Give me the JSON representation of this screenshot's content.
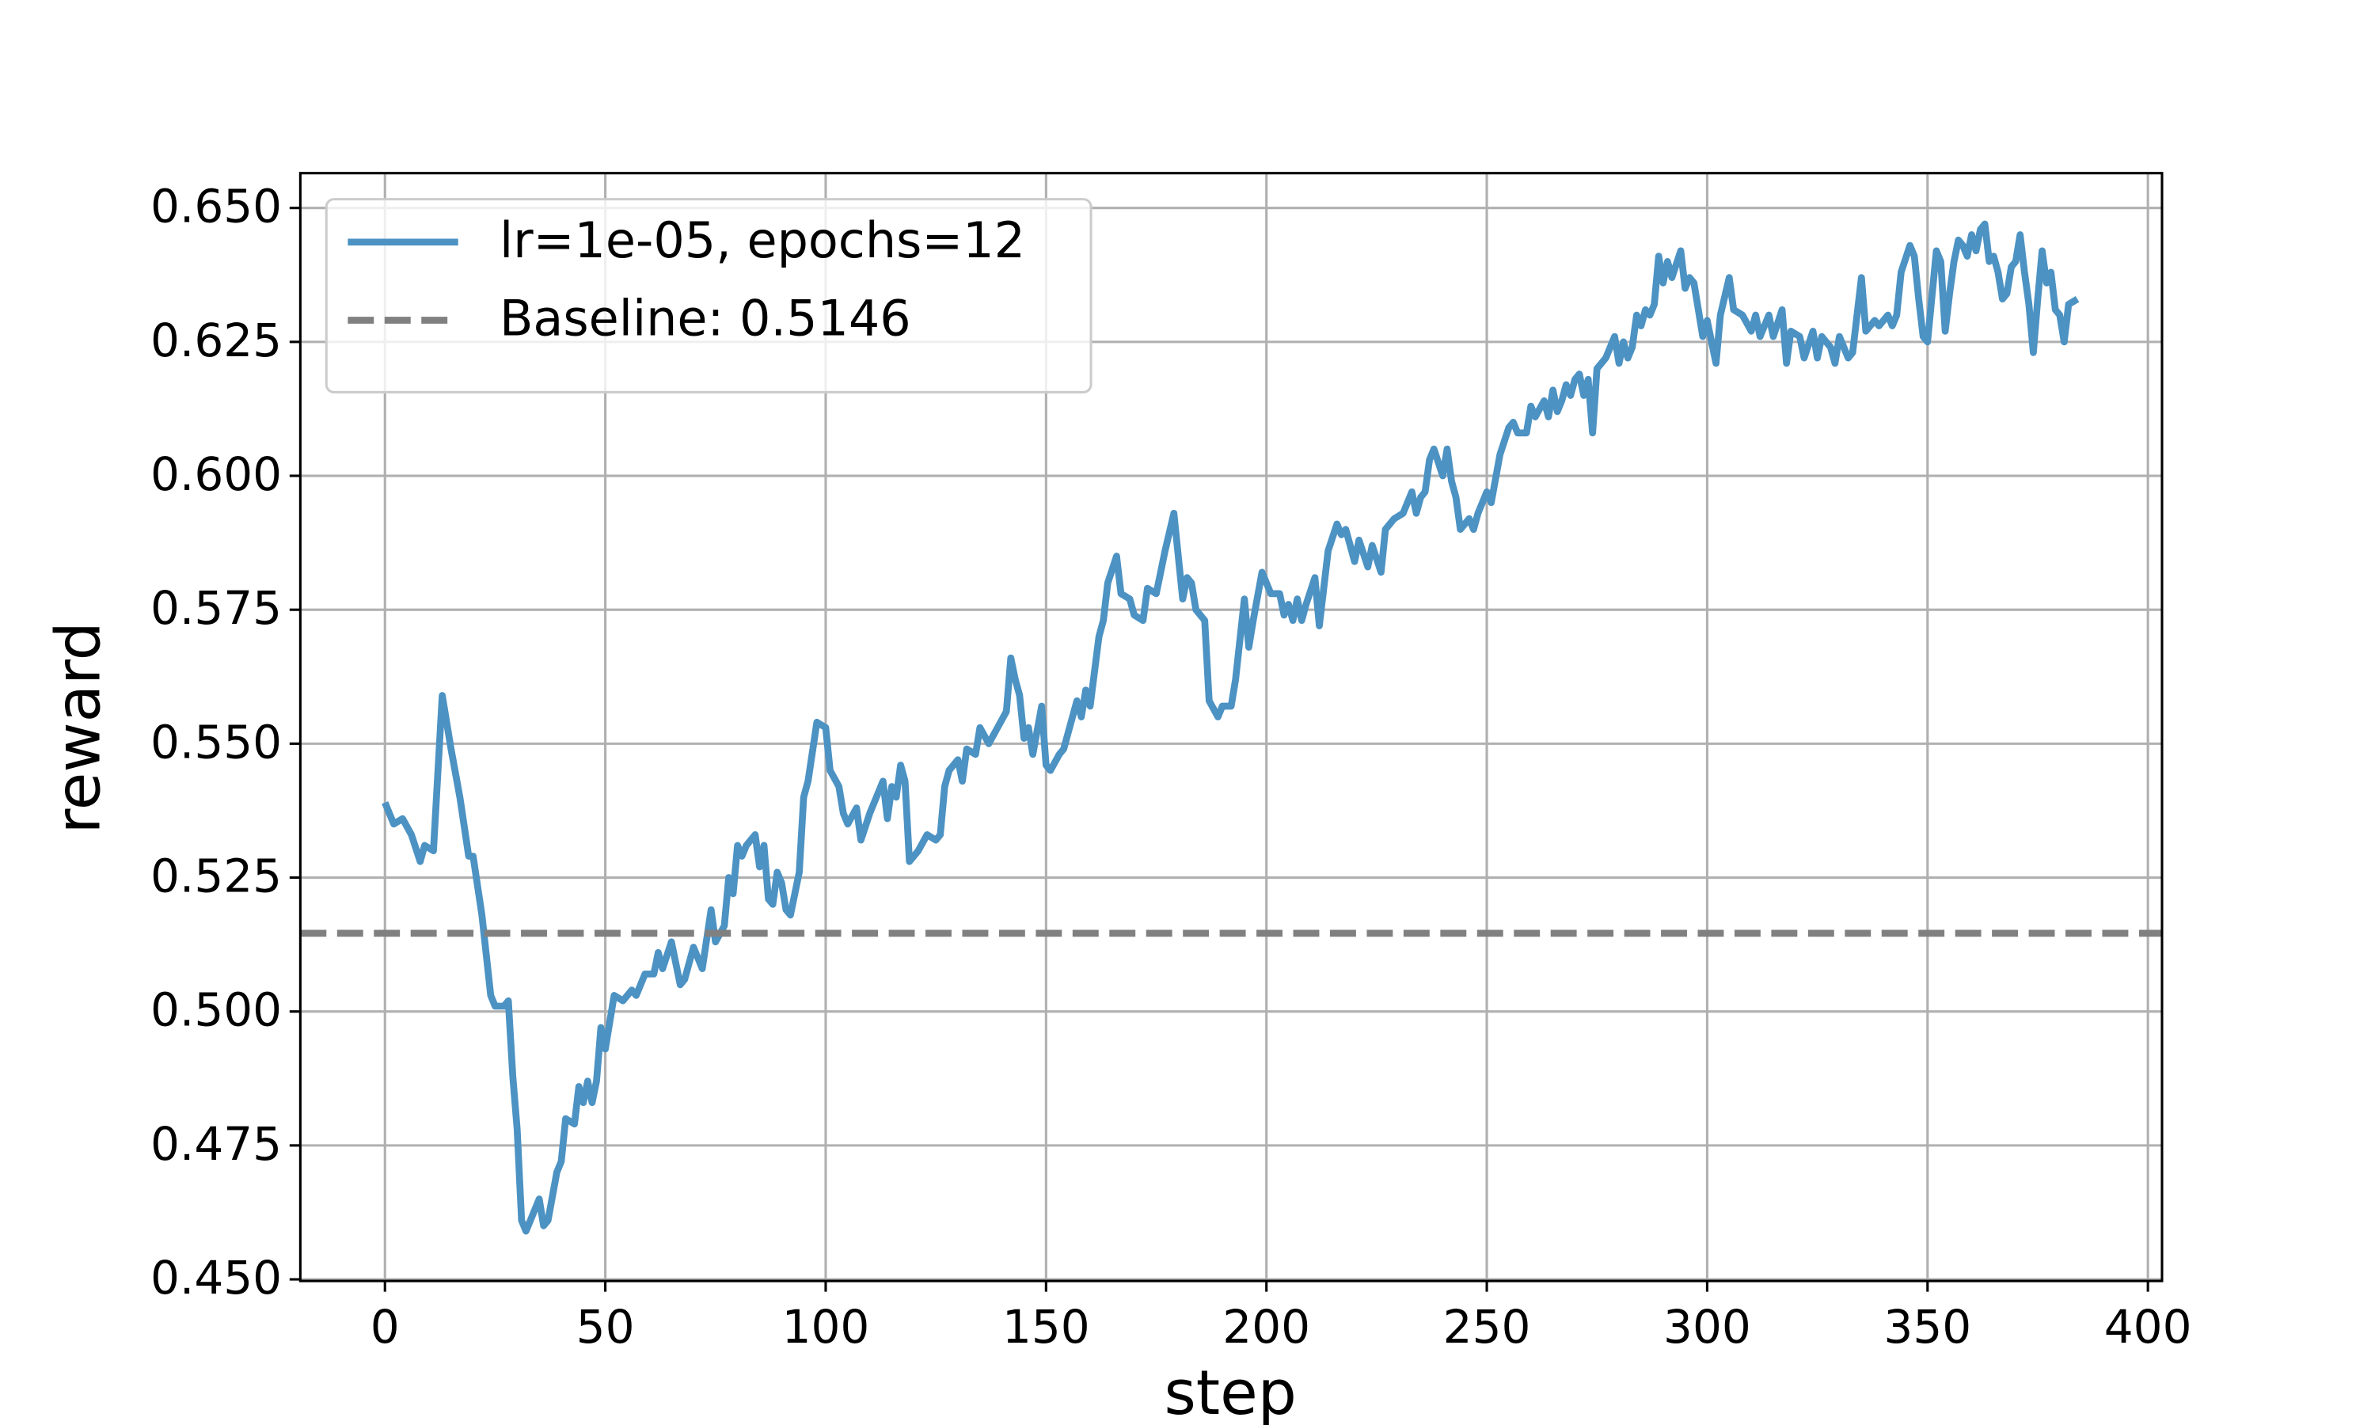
{
  "chart_data": {
    "type": "line",
    "xlabel": "step",
    "ylabel": "reward",
    "x": [
      0,
      2,
      4,
      6,
      8,
      9,
      11,
      13,
      15,
      17,
      19,
      20,
      22,
      24,
      25,
      27,
      28,
      29,
      30,
      31,
      32,
      34,
      35,
      36,
      37,
      39,
      40,
      41,
      43,
      44,
      45,
      46,
      47,
      48,
      49,
      50,
      52,
      54,
      56,
      57,
      59,
      61,
      62,
      63,
      65,
      67,
      68,
      70,
      72,
      74,
      75,
      77,
      78,
      79,
      80,
      81,
      82,
      84,
      85,
      86,
      87,
      88,
      89,
      90,
      91,
      92,
      94,
      95,
      96,
      98,
      100,
      101,
      103,
      104,
      105,
      107,
      108,
      110,
      112,
      113,
      114,
      115,
      116,
      117,
      118,
      119,
      121,
      123,
      125,
      126,
      127,
      128,
      130,
      131,
      132,
      134,
      135,
      137,
      139,
      141,
      142,
      143,
      144,
      145,
      146,
      147,
      149,
      150,
      151,
      153,
      154,
      156,
      157,
      158,
      159,
      160,
      162,
      163,
      164,
      166,
      167,
      169,
      170,
      172,
      173,
      175,
      177,
      179,
      181,
      182,
      183,
      184,
      186,
      187,
      189,
      190,
      192,
      193,
      195,
      196,
      197,
      199,
      201,
      203,
      204,
      205,
      206,
      207,
      208,
      209,
      211,
      212,
      214,
      216,
      217,
      218,
      220,
      221,
      223,
      224,
      226,
      227,
      229,
      231,
      233,
      234,
      235,
      236,
      237,
      238,
      240,
      241,
      242,
      243,
      244,
      246,
      247,
      248,
      250,
      251,
      253,
      255,
      256,
      257,
      259,
      260,
      261,
      263,
      264,
      265,
      266,
      267,
      268,
      269,
      270,
      271,
      272,
      273,
      274,
      275,
      277,
      279,
      280,
      281,
      282,
      283,
      284,
      285,
      286,
      287,
      288,
      289,
      290,
      291,
      292,
      294,
      295,
      296,
      297,
      299,
      300,
      302,
      303,
      305,
      306,
      308,
      310,
      311,
      312,
      314,
      315,
      317,
      318,
      319,
      321,
      322,
      324,
      325,
      326,
      328,
      329,
      330,
      332,
      333,
      335,
      336,
      338,
      339,
      341,
      342,
      343,
      344,
      346,
      347,
      348,
      349,
      350,
      352,
      353,
      354,
      355,
      356,
      357,
      358,
      359,
      360,
      361,
      362,
      363,
      364,
      365,
      366,
      367,
      368,
      369,
      370,
      371,
      372,
      373,
      374,
      375,
      376,
      377,
      378,
      379,
      380,
      381,
      382,
      384
    ],
    "series": [
      {
        "name": "lr=1e-05, epochs=12",
        "color": "#4c92c3",
        "values": [
          0.539,
          0.535,
          0.536,
          0.533,
          0.528,
          0.531,
          0.53,
          0.559,
          0.549,
          0.54,
          0.529,
          0.529,
          0.518,
          0.503,
          0.501,
          0.501,
          0.502,
          0.488,
          0.478,
          0.461,
          0.459,
          0.463,
          0.465,
          0.46,
          0.461,
          0.47,
          0.472,
          0.48,
          0.479,
          0.486,
          0.483,
          0.487,
          0.483,
          0.487,
          0.497,
          0.493,
          0.503,
          0.502,
          0.504,
          0.503,
          0.507,
          0.507,
          0.511,
          0.508,
          0.513,
          0.505,
          0.506,
          0.512,
          0.508,
          0.519,
          0.513,
          0.516,
          0.525,
          0.522,
          0.531,
          0.529,
          0.531,
          0.533,
          0.527,
          0.531,
          0.521,
          0.52,
          0.526,
          0.524,
          0.519,
          0.518,
          0.526,
          0.54,
          0.543,
          0.554,
          0.553,
          0.545,
          0.542,
          0.537,
          0.535,
          0.538,
          0.532,
          0.537,
          0.541,
          0.543,
          0.536,
          0.542,
          0.54,
          0.546,
          0.543,
          0.528,
          0.53,
          0.533,
          0.532,
          0.533,
          0.542,
          0.545,
          0.547,
          0.543,
          0.549,
          0.548,
          0.553,
          0.55,
          0.553,
          0.556,
          0.566,
          0.562,
          0.559,
          0.551,
          0.553,
          0.548,
          0.557,
          0.546,
          0.545,
          0.548,
          0.549,
          0.555,
          0.558,
          0.555,
          0.56,
          0.557,
          0.57,
          0.573,
          0.58,
          0.585,
          0.578,
          0.577,
          0.574,
          0.573,
          0.579,
          0.578,
          0.586,
          0.593,
          0.577,
          0.581,
          0.58,
          0.575,
          0.573,
          0.558,
          0.555,
          0.557,
          0.557,
          0.562,
          0.577,
          0.568,
          0.573,
          0.582,
          0.578,
          0.578,
          0.574,
          0.576,
          0.573,
          0.577,
          0.573,
          0.576,
          0.581,
          0.572,
          0.586,
          0.591,
          0.589,
          0.59,
          0.584,
          0.588,
          0.583,
          0.587,
          0.582,
          0.59,
          0.592,
          0.593,
          0.597,
          0.593,
          0.596,
          0.597,
          0.603,
          0.605,
          0.6,
          0.605,
          0.599,
          0.596,
          0.59,
          0.592,
          0.59,
          0.593,
          0.597,
          0.595,
          0.604,
          0.609,
          0.61,
          0.608,
          0.608,
          0.613,
          0.611,
          0.614,
          0.611,
          0.616,
          0.612,
          0.614,
          0.617,
          0.615,
          0.618,
          0.619,
          0.615,
          0.618,
          0.608,
          0.62,
          0.622,
          0.626,
          0.621,
          0.625,
          0.622,
          0.624,
          0.63,
          0.628,
          0.631,
          0.63,
          0.632,
          0.641,
          0.636,
          0.64,
          0.637,
          0.642,
          0.635,
          0.637,
          0.636,
          0.626,
          0.629,
          0.621,
          0.63,
          0.637,
          0.631,
          0.63,
          0.627,
          0.63,
          0.626,
          0.63,
          0.626,
          0.631,
          0.621,
          0.627,
          0.626,
          0.622,
          0.627,
          0.622,
          0.626,
          0.624,
          0.621,
          0.626,
          0.622,
          0.623,
          0.637,
          0.627,
          0.629,
          0.628,
          0.63,
          0.628,
          0.63,
          0.638,
          0.643,
          0.641,
          0.633,
          0.626,
          0.625,
          0.642,
          0.64,
          0.627,
          0.634,
          0.64,
          0.644,
          0.643,
          0.641,
          0.645,
          0.642,
          0.646,
          0.647,
          0.64,
          0.641,
          0.638,
          0.633,
          0.634,
          0.639,
          0.64,
          0.645,
          0.638,
          0.632,
          0.623,
          0.633,
          0.642,
          0.636,
          0.638,
          0.631,
          0.63,
          0.625,
          0.632,
          0.633
        ]
      }
    ],
    "baseline": {
      "label": "Baseline: 0.5146",
      "value": 0.5146,
      "color": "#808080"
    },
    "xlim": [
      -19.2,
      403.2
    ],
    "ylim": [
      0.4497,
      0.6565
    ],
    "xticks": [
      0,
      50,
      100,
      150,
      200,
      250,
      300,
      350,
      400
    ],
    "yticks": [
      {
        "value": 0.45,
        "label": "0.450"
      },
      0.475,
      {
        "value": 0.5,
        "label": "0.500"
      },
      0.525,
      {
        "value": 0.55,
        "label": "0.550"
      },
      0.575,
      {
        "value": 0.6,
        "label": "0.600"
      },
      0.625,
      {
        "value": 0.65,
        "label": "0.650"
      }
    ],
    "grid": true,
    "legend": "upper left"
  }
}
